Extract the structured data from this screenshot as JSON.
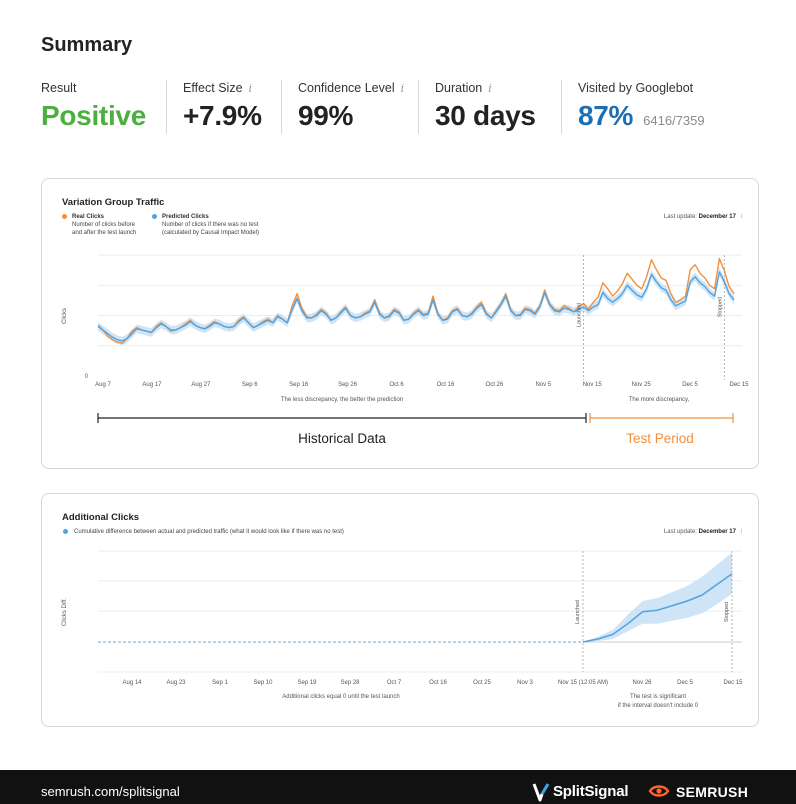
{
  "summary": {
    "title": "Summary",
    "metrics": [
      {
        "label": "Result",
        "value": "Positive",
        "info": "",
        "sub": "",
        "color": "#4caf3f"
      },
      {
        "label": "Effect Size",
        "value": "+7.9%",
        "info": "i",
        "sub": "",
        "color": "#222222"
      },
      {
        "label": "Confidence Level",
        "value": "99%",
        "info": "i",
        "sub": "",
        "color": "#222222"
      },
      {
        "label": "Duration",
        "value": "30 days",
        "info": "i",
        "sub": "",
        "color": "#222222"
      },
      {
        "label": "Visited by Googlebot",
        "value": "87%",
        "info": "",
        "sub": "6416/7359",
        "color": "#1a6fb5"
      }
    ]
  },
  "colors": {
    "real": "#f0903c",
    "predicted": "#4fa3e0",
    "band": "#cfe4f6",
    "grid": "#e6e6e6",
    "test": "#f0903c"
  },
  "traffic": {
    "title": "Variation Group Traffic",
    "legend": [
      {
        "title": "Real Clicks",
        "lines": [
          "Number of clicks before",
          "and after the test launch"
        ]
      },
      {
        "title": "Predicted Clicks",
        "lines": [
          "Number of clicks if there was no test",
          "(calculated by Causal Impact Model)"
        ]
      }
    ],
    "last_update_label": "Last update:",
    "last_update_value": "December 17",
    "info": "i",
    "ylabel": "Clicks",
    "zero_label": "0",
    "launched_label": "Launched",
    "stopped_label": "Stopped",
    "note_left": "The less discrepancy, the better the prediction",
    "note_right": "The more discrepancy,",
    "historical_label": "Historical Data",
    "test_label": "Test Period"
  },
  "additional": {
    "title": "Additional Clicks",
    "legend_text": "Cumulative difference between actual and predicted traffic (what it would look like if there was no test)",
    "last_update_label": "Last update:",
    "last_update_value": "December 17",
    "info": "i",
    "ylabel": "Clicks Diff.",
    "launched_label": "Launched",
    "stopped_label": "Stopped",
    "note_left": "Additional clicks equal 0 until the test launch",
    "note_right_1": "The test is significant",
    "note_right_2": "if the interval doesn't include 0"
  },
  "chart_data": [
    {
      "type": "line",
      "title": "Variation Group Traffic",
      "xlabel": "",
      "ylabel": "Clicks",
      "x_ticks": [
        "Aug 7",
        "Aug 17",
        "Aug 27",
        "Sep 6",
        "Sep 16",
        "Sep 26",
        "Oct 6",
        "Oct 16",
        "Oct 26",
        "Nov 5",
        "Nov 15",
        "Nov 25",
        "Dec 5",
        "Dec 15"
      ],
      "x_range": [
        "Aug 7",
        "Dec 15"
      ],
      "y_range": [
        0,
        100
      ],
      "grid": true,
      "legend_position": "top-left",
      "events": {
        "Launched": 100,
        "Stopped": 129
      },
      "series": [
        {
          "name": "Real Clicks",
          "values": [
            42,
            38,
            33,
            30,
            28,
            27,
            31,
            37,
            40,
            38,
            37,
            36,
            41,
            44,
            41,
            37,
            38,
            40,
            43,
            46,
            42,
            40,
            39,
            42,
            45,
            43,
            41,
            40,
            41,
            46,
            49,
            44,
            40,
            42,
            45,
            47,
            44,
            50,
            47,
            44,
            58,
            68,
            56,
            49,
            48,
            51,
            55,
            52,
            46,
            48,
            53,
            57,
            50,
            48,
            49,
            52,
            54,
            63,
            52,
            48,
            50,
            55,
            53,
            46,
            47,
            52,
            55,
            51,
            52,
            66,
            52,
            46,
            48,
            54,
            56,
            50,
            49,
            52,
            57,
            61,
            52,
            48,
            54,
            60,
            68,
            55,
            50,
            51,
            56,
            55,
            52,
            58,
            71,
            60,
            55,
            54,
            58,
            56,
            53,
            57,
            60,
            55,
            61,
            65,
            77,
            72,
            66,
            70,
            76,
            85,
            80,
            75,
            72,
            82,
            96,
            88,
            81,
            79,
            68,
            61,
            63,
            66,
            88,
            92,
            85,
            81,
            75,
            72,
            97,
            87,
            74,
            68
          ]
        },
        {
          "name": "Predicted Clicks",
          "values": [
            41,
            38,
            35,
            32,
            30,
            29,
            31,
            35,
            39,
            38,
            37,
            36,
            40,
            43,
            41,
            38,
            38,
            40,
            42,
            45,
            42,
            40,
            39,
            41,
            44,
            43,
            41,
            40,
            41,
            45,
            48,
            44,
            40,
            42,
            44,
            46,
            44,
            49,
            47,
            44,
            55,
            64,
            54,
            48,
            48,
            50,
            54,
            51,
            46,
            48,
            52,
            56,
            50,
            48,
            49,
            51,
            53,
            61,
            51,
            48,
            49,
            54,
            52,
            46,
            47,
            51,
            54,
            50,
            51,
            63,
            51,
            46,
            47,
            53,
            55,
            50,
            49,
            51,
            56,
            59,
            51,
            48,
            53,
            59,
            66,
            54,
            50,
            50,
            55,
            54,
            51,
            57,
            69,
            59,
            54,
            53,
            56,
            55,
            53,
            55,
            57,
            54,
            57,
            59,
            69,
            64,
            61,
            64,
            68,
            75,
            71,
            67,
            65,
            72,
            84,
            78,
            73,
            71,
            63,
            58,
            60,
            62,
            78,
            82,
            77,
            74,
            69,
            66,
            86,
            78,
            68,
            63
          ]
        }
      ]
    },
    {
      "type": "area",
      "title": "Additional Clicks",
      "xlabel": "",
      "ylabel": "Clicks Diff.",
      "x_ticks": [
        "Aug 14",
        "Aug 23",
        "Sep 1",
        "Sep 10",
        "Sep 19",
        "Sep 28",
        "Oct 7",
        "Oct 16",
        "Oct 25",
        "Nov 3",
        "Nov 15 (12:05 AM)",
        "Nov 26",
        "Dec 5",
        "Dec 15"
      ],
      "y_range": [
        -1,
        3
      ],
      "grid": true,
      "legend_position": "top-left",
      "events": {
        "Launched": 0,
        "Stopped": 30
      },
      "series": [
        {
          "name": "Cumulative difference",
          "x": [
            0,
            3,
            6,
            9,
            12,
            15,
            18,
            21,
            24,
            27,
            30
          ],
          "values": [
            0,
            0.1,
            0.25,
            0.6,
            1.0,
            1.05,
            1.2,
            1.35,
            1.55,
            1.9,
            2.25
          ],
          "lower": [
            0,
            0.03,
            0.1,
            0.35,
            0.6,
            0.6,
            0.7,
            0.8,
            0.95,
            1.25,
            1.6
          ],
          "upper": [
            0,
            0.17,
            0.4,
            0.9,
            1.35,
            1.45,
            1.65,
            1.85,
            2.15,
            2.55,
            2.95
          ]
        }
      ]
    }
  ],
  "footer": {
    "url": "semrush.com/splitsignal",
    "splitsignal": "SplitSignal",
    "semrush": "SEMRUSH"
  }
}
